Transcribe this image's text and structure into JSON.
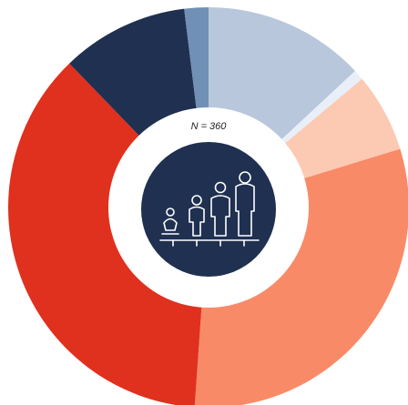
{
  "chart_data": {
    "type": "donut",
    "annotation": "N = 360",
    "values": [
      47,
      3,
      23,
      111,
      132,
      37,
      7
    ],
    "colors": [
      "#b8c7dc",
      "#e9eff8",
      "#fcc9b3",
      "#f98a68",
      "#e0301e",
      "#1f3050",
      "#7090b5"
    ]
  }
}
